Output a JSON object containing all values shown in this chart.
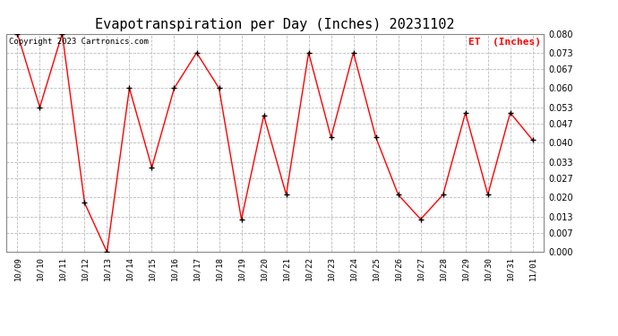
{
  "title": "Evapotranspiration per Day (Inches) 20231102",
  "copyright": "Copyright 2023 Cartronics.com",
  "legend_label": "ET  (Inches)",
  "dates": [
    "10/09",
    "10/10",
    "10/11",
    "10/12",
    "10/13",
    "10/14",
    "10/15",
    "10/16",
    "10/17",
    "10/18",
    "10/19",
    "10/20",
    "10/21",
    "10/22",
    "10/23",
    "10/24",
    "10/25",
    "10/26",
    "10/27",
    "10/28",
    "10/29",
    "10/30",
    "10/31",
    "11/01"
  ],
  "values": [
    0.08,
    0.053,
    0.08,
    0.018,
    0.0,
    0.06,
    0.031,
    0.06,
    0.073,
    0.06,
    0.012,
    0.05,
    0.021,
    0.073,
    0.042,
    0.073,
    0.042,
    0.021,
    0.012,
    0.021,
    0.051,
    0.021,
    0.051,
    0.041
  ],
  "ylim": [
    0.0,
    0.08
  ],
  "yticks": [
    0.0,
    0.007,
    0.013,
    0.02,
    0.027,
    0.033,
    0.04,
    0.047,
    0.053,
    0.06,
    0.067,
    0.073,
    0.08
  ],
  "line_color": "red",
  "marker_color": "black",
  "grid_color": "#bbbbbb",
  "title_fontsize": 11,
  "copyright_fontsize": 6.5,
  "legend_fontsize": 8,
  "legend_color": "red",
  "bg_color": "white",
  "plot_bg_color": "white"
}
